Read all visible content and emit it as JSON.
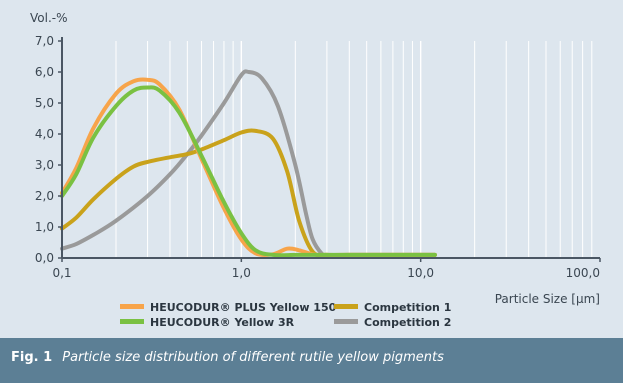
{
  "caption": {
    "label": "Fig. 1",
    "text": "Particle size distribution of different rutile yellow pigments"
  },
  "chart_data": {
    "type": "line",
    "title": "",
    "ylabel": "Vol.-%",
    "xlabel": "Particle Size [µm]",
    "xscale": "log",
    "xlim": [
      0.1,
      100
    ],
    "ylim": [
      0,
      7
    ],
    "xticks": [
      0.1,
      1,
      10,
      100
    ],
    "xtick_labels": [
      "0,1",
      "1,0",
      "10,0",
      "100,0"
    ],
    "yticks": [
      0,
      1,
      2,
      3,
      4,
      5,
      6,
      7
    ],
    "ytick_labels": [
      "0,0",
      "1,0",
      "2,0",
      "3,0",
      "4,0",
      "5,0",
      "6,0",
      "7,0"
    ],
    "grid": "vertical",
    "legend_placement": "bottom",
    "series": [
      {
        "name": "HEUCODUR® PLUS Yellow 150",
        "color": "#f7a44a",
        "x": [
          0.1,
          0.12,
          0.15,
          0.2,
          0.25,
          0.3,
          0.35,
          0.45,
          0.6,
          0.8,
          1.0,
          1.2,
          1.5,
          1.8,
          2.1,
          2.5,
          3.0,
          4.0,
          6.0,
          10.0,
          12.0
        ],
        "y": [
          2.1,
          2.9,
          4.2,
          5.3,
          5.7,
          5.75,
          5.6,
          4.8,
          3.2,
          1.6,
          0.6,
          0.15,
          0.12,
          0.3,
          0.25,
          0.12,
          0.1,
          0.1,
          0.1,
          0.1,
          0.1
        ]
      },
      {
        "name": "HEUCODUR® Yellow 3R",
        "color": "#7ac142",
        "x": [
          0.1,
          0.12,
          0.15,
          0.2,
          0.25,
          0.3,
          0.35,
          0.45,
          0.6,
          0.8,
          1.0,
          1.2,
          1.5,
          2.0,
          2.5,
          3.0,
          4.0,
          6.0,
          10.0,
          12.0
        ],
        "y": [
          2.0,
          2.7,
          3.9,
          4.9,
          5.4,
          5.5,
          5.4,
          4.7,
          3.3,
          1.8,
          0.8,
          0.25,
          0.1,
          0.1,
          0.1,
          0.1,
          0.1,
          0.1,
          0.1,
          0.1
        ]
      },
      {
        "name": "Competition 1",
        "color": "#c9a21b",
        "x": [
          0.1,
          0.12,
          0.15,
          0.2,
          0.25,
          0.3,
          0.4,
          0.5,
          0.6,
          0.8,
          1.0,
          1.2,
          1.5,
          1.8,
          2.1,
          2.5,
          3.0,
          4.0,
          6.0,
          10.0,
          12.0
        ],
        "y": [
          0.95,
          1.3,
          1.9,
          2.55,
          2.95,
          3.1,
          3.25,
          3.35,
          3.5,
          3.8,
          4.05,
          4.1,
          3.85,
          2.8,
          1.2,
          0.2,
          0.1,
          0.1,
          0.1,
          0.1,
          0.1
        ]
      },
      {
        "name": "Competition 2",
        "color": "#9a9a9a",
        "x": [
          0.1,
          0.12,
          0.15,
          0.2,
          0.3,
          0.4,
          0.5,
          0.6,
          0.8,
          1.0,
          1.1,
          1.3,
          1.6,
          2.0,
          2.3,
          2.5,
          2.8,
          3.0,
          4.0,
          6.0,
          10.0,
          12.0
        ],
        "y": [
          0.3,
          0.45,
          0.75,
          1.2,
          2.0,
          2.7,
          3.35,
          3.95,
          5.0,
          5.9,
          6.0,
          5.8,
          4.9,
          3.0,
          1.4,
          0.6,
          0.15,
          0.1,
          0.1,
          0.1,
          0.1,
          0.1
        ]
      }
    ]
  }
}
